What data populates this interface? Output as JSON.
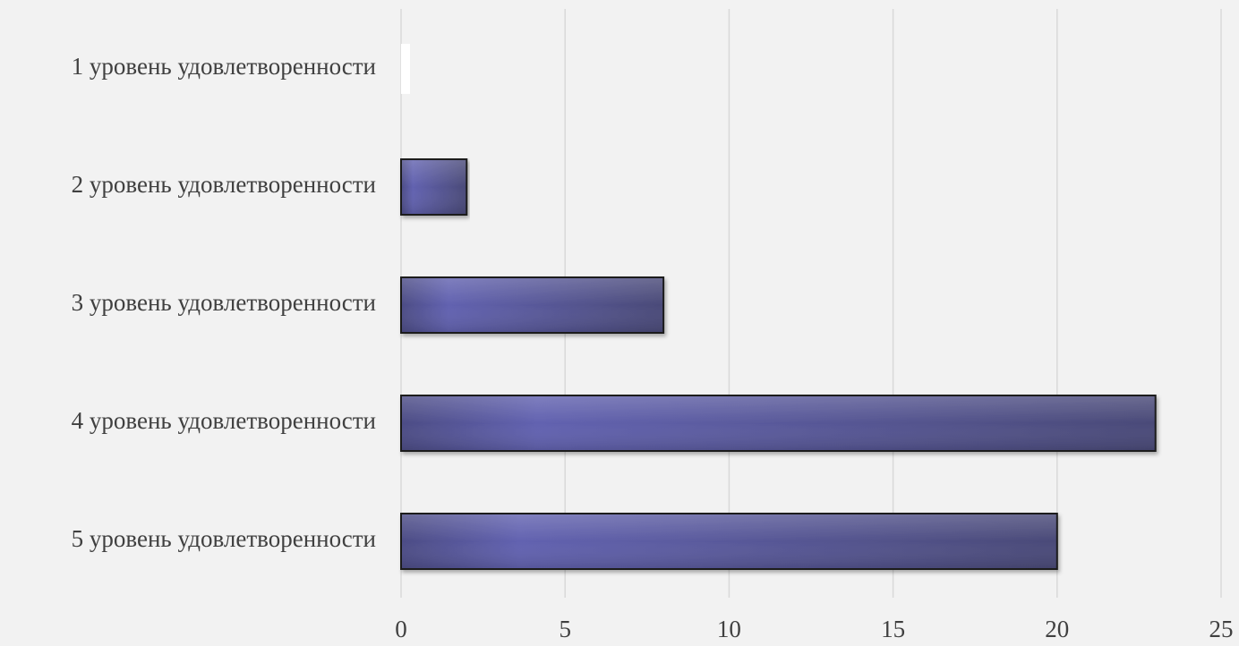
{
  "chart_data": {
    "type": "bar",
    "orientation": "horizontal",
    "categories": [
      "1 уровень удовлетворенности",
      "2 уровень удовлетворенности",
      "3 уровень удовлетворенности",
      "4 уровень удовлетворенности",
      "5 уровень удовлетворенности"
    ],
    "values": [
      0,
      2,
      8,
      23,
      20
    ],
    "x_ticks": [
      "0",
      "5",
      "10",
      "15",
      "20",
      "25"
    ],
    "xlim": [
      0,
      25
    ],
    "grid": true,
    "legend": "none",
    "title": "",
    "xlabel": "",
    "ylabel": "",
    "colors": {
      "bar_light": "#6363b3",
      "bar_dark": "#4a4a7a",
      "bar_outline": "#1a1a1a",
      "zero_bar": "#ffffff",
      "background": "#f2f2f2",
      "grid": "#d9d9d9",
      "text": "#404040"
    }
  }
}
